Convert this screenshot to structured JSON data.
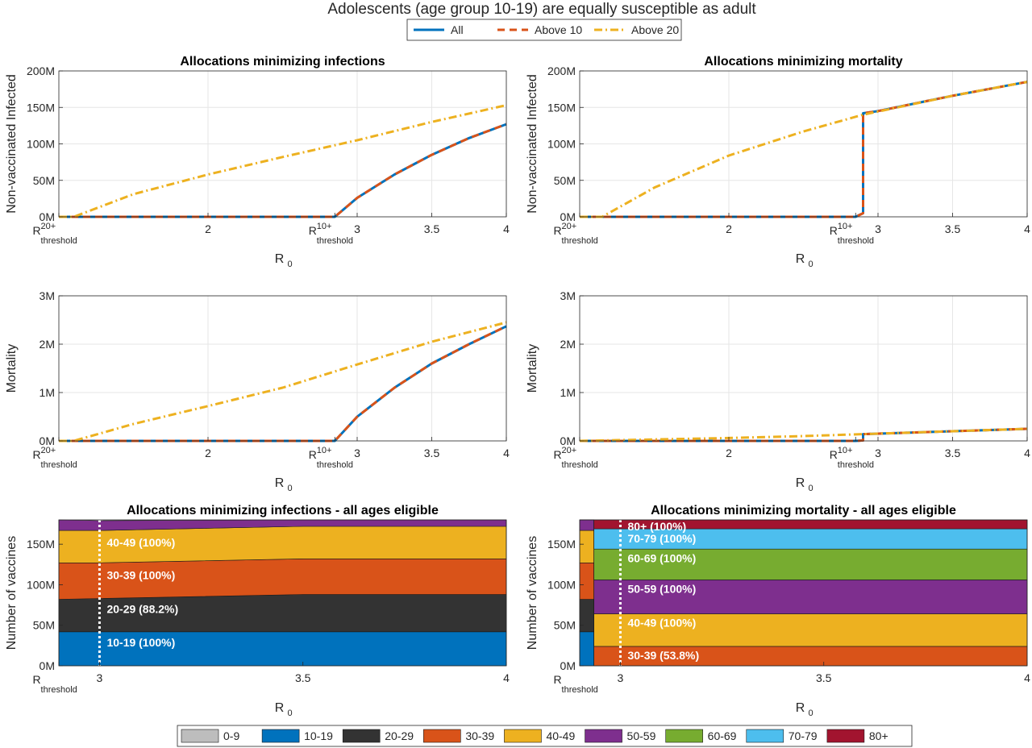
{
  "figure": {
    "suptitle": "Adolescents (age group 10-19) are equally susceptible as adult",
    "series_legend": [
      {
        "label": "All",
        "color": "#0072BD",
        "dash": "solid"
      },
      {
        "label": "Above 10",
        "color": "#D95319",
        "dash": "dashed"
      },
      {
        "label": "Above 20",
        "color": "#EDB120",
        "dash": "dashdot"
      }
    ],
    "age_legend": [
      {
        "label": "0-9",
        "color": "#BDBDBD"
      },
      {
        "label": "10-19",
        "color": "#0072BD"
      },
      {
        "label": "20-29",
        "color": "#333333"
      },
      {
        "label": "30-39",
        "color": "#D95319"
      },
      {
        "label": "40-49",
        "color": "#EDB120"
      },
      {
        "label": "50-59",
        "color": "#7E2F8E"
      },
      {
        "label": "60-69",
        "color": "#77AC30"
      },
      {
        "label": "70-79",
        "color": "#4DBEEE"
      },
      {
        "label": "80+",
        "color": "#A2142F"
      }
    ]
  },
  "chart_data": [
    {
      "id": "infected_min_infections",
      "type": "line",
      "title": "Allocations minimizing infections",
      "xlabel": "R",
      "xlabel_sub": "0",
      "ylabel": "Non-vaccinated Infected",
      "xlim": [
        1.0,
        4.0
      ],
      "ylim": [
        0,
        200
      ],
      "x_ticks": [
        {
          "value": 2,
          "label": "2"
        },
        {
          "value": 3,
          "label": "3"
        },
        {
          "value": 3.5,
          "label": "3.5"
        },
        {
          "value": 4,
          "label": "4"
        }
      ],
      "y_ticks": [
        {
          "value": 0,
          "label": "0M"
        },
        {
          "value": 50,
          "label": "50M"
        },
        {
          "value": 100,
          "label": "100M"
        },
        {
          "value": 150,
          "label": "150M"
        },
        {
          "value": 200,
          "label": "200M"
        }
      ],
      "thresholds": [
        {
          "value": 1.0,
          "base": "R",
          "sup": "20+",
          "sub": "threshold"
        },
        {
          "value": 2.85,
          "base": "R",
          "sup": "10+",
          "sub": "threshold"
        }
      ],
      "grid": true,
      "series": [
        {
          "name": "All",
          "x": [
            1.0,
            2.85,
            3.0,
            3.25,
            3.5,
            3.75,
            4.0
          ],
          "y": [
            0,
            0,
            26,
            58,
            85,
            108,
            127
          ]
        },
        {
          "name": "Above 10",
          "x": [
            1.0,
            2.85,
            3.0,
            3.25,
            3.5,
            3.75,
            4.0
          ],
          "y": [
            0,
            0,
            26,
            58,
            85,
            108,
            127
          ]
        },
        {
          "name": "Above 20",
          "x": [
            1.0,
            1.1,
            1.5,
            2.0,
            2.5,
            3.0,
            3.5,
            4.0
          ],
          "y": [
            0,
            0,
            31,
            58,
            82,
            105,
            130,
            153
          ]
        }
      ]
    },
    {
      "id": "infected_min_mortality",
      "type": "line",
      "title": "Allocations minimizing mortality",
      "xlabel": "R",
      "xlabel_sub": "0",
      "ylabel": "Non-vaccinated Infected",
      "xlim": [
        1.0,
        4.0
      ],
      "ylim": [
        0,
        200
      ],
      "x_ticks": [
        {
          "value": 2,
          "label": "2"
        },
        {
          "value": 3,
          "label": "3"
        },
        {
          "value": 3.5,
          "label": "3.5"
        },
        {
          "value": 4,
          "label": "4"
        }
      ],
      "y_ticks": [
        {
          "value": 0,
          "label": "0M"
        },
        {
          "value": 50,
          "label": "50M"
        },
        {
          "value": 100,
          "label": "100M"
        },
        {
          "value": 150,
          "label": "150M"
        },
        {
          "value": 200,
          "label": "200M"
        }
      ],
      "thresholds": [
        {
          "value": 1.0,
          "base": "R",
          "sup": "20+",
          "sub": "threshold"
        },
        {
          "value": 2.85,
          "base": "R",
          "sup": "10+",
          "sub": "threshold"
        }
      ],
      "grid": true,
      "series": [
        {
          "name": "All",
          "x": [
            1.0,
            2.85,
            2.9,
            2.9,
            3.0,
            3.5,
            4.0
          ],
          "y": [
            0,
            0,
            5,
            142,
            145,
            166,
            185
          ]
        },
        {
          "name": "Above 10",
          "x": [
            1.0,
            2.85,
            2.9,
            2.9,
            3.0,
            3.5,
            4.0
          ],
          "y": [
            0,
            0,
            5,
            142,
            145,
            166,
            185
          ]
        },
        {
          "name": "Above 20",
          "x": [
            1.0,
            1.15,
            1.5,
            2.0,
            2.5,
            2.9,
            3.5,
            4.0
          ],
          "y": [
            0,
            0,
            40,
            84,
            117,
            140,
            166,
            185
          ]
        }
      ]
    },
    {
      "id": "mortality_min_infections",
      "type": "line",
      "title": "",
      "xlabel": "R",
      "xlabel_sub": "0",
      "ylabel": "Mortality",
      "xlim": [
        1.0,
        4.0
      ],
      "ylim": [
        0,
        3
      ],
      "x_ticks": [
        {
          "value": 2,
          "label": "2"
        },
        {
          "value": 3,
          "label": "3"
        },
        {
          "value": 3.5,
          "label": "3.5"
        },
        {
          "value": 4,
          "label": "4"
        }
      ],
      "y_ticks": [
        {
          "value": 0,
          "label": "0M"
        },
        {
          "value": 1,
          "label": "1M"
        },
        {
          "value": 2,
          "label": "2M"
        },
        {
          "value": 3,
          "label": "3M"
        }
      ],
      "thresholds": [
        {
          "value": 1.0,
          "base": "R",
          "sup": "20+",
          "sub": "threshold"
        },
        {
          "value": 2.85,
          "base": "R",
          "sup": "10+",
          "sub": "threshold"
        }
      ],
      "grid": true,
      "series": [
        {
          "name": "All",
          "x": [
            1.0,
            2.85,
            3.0,
            3.25,
            3.5,
            3.75,
            4.0
          ],
          "y": [
            0,
            0,
            0.5,
            1.1,
            1.6,
            2.0,
            2.37
          ]
        },
        {
          "name": "Above 10",
          "x": [
            1.0,
            2.85,
            3.0,
            3.25,
            3.5,
            3.75,
            4.0
          ],
          "y": [
            0,
            0,
            0.5,
            1.1,
            1.6,
            2.0,
            2.37
          ]
        },
        {
          "name": "Above 20",
          "x": [
            1.0,
            1.1,
            1.5,
            2.0,
            2.5,
            3.0,
            3.5,
            4.0
          ],
          "y": [
            0,
            0,
            0.35,
            0.72,
            1.1,
            1.58,
            2.05,
            2.45
          ]
        }
      ]
    },
    {
      "id": "mortality_min_mortality",
      "type": "line",
      "title": "",
      "xlabel": "R",
      "xlabel_sub": "0",
      "ylabel": "Mortality",
      "xlim": [
        1.0,
        4.0
      ],
      "ylim": [
        0,
        3
      ],
      "x_ticks": [
        {
          "value": 2,
          "label": "2"
        },
        {
          "value": 3,
          "label": "3"
        },
        {
          "value": 3.5,
          "label": "3.5"
        },
        {
          "value": 4,
          "label": "4"
        }
      ],
      "y_ticks": [
        {
          "value": 0,
          "label": "0M"
        },
        {
          "value": 1,
          "label": "1M"
        },
        {
          "value": 2,
          "label": "2M"
        },
        {
          "value": 3,
          "label": "3M"
        }
      ],
      "thresholds": [
        {
          "value": 1.0,
          "base": "R",
          "sup": "20+",
          "sub": "threshold"
        },
        {
          "value": 2.85,
          "base": "R",
          "sup": "10+",
          "sub": "threshold"
        }
      ],
      "grid": true,
      "series": [
        {
          "name": "All",
          "x": [
            1.0,
            2.85,
            2.9,
            2.9,
            3.5,
            4.0
          ],
          "y": [
            0,
            0,
            0.01,
            0.14,
            0.2,
            0.25
          ]
        },
        {
          "name": "Above 10",
          "x": [
            1.0,
            2.85,
            2.9,
            2.9,
            3.5,
            4.0
          ],
          "y": [
            0,
            0,
            0.01,
            0.14,
            0.2,
            0.25
          ]
        },
        {
          "name": "Above 20",
          "x": [
            1.0,
            1.5,
            2.0,
            2.5,
            2.9,
            3.5,
            4.0
          ],
          "y": [
            0,
            0.03,
            0.06,
            0.1,
            0.14,
            0.2,
            0.25
          ]
        }
      ]
    },
    {
      "id": "vaccines_min_infections",
      "type": "area",
      "title": "Allocations minimizing infections - all ages eligible",
      "xlabel": "R",
      "xlabel_sub": "0",
      "ylabel": "Number of vaccines",
      "xlim": [
        2.9,
        4.0
      ],
      "ylim": [
        0,
        180
      ],
      "x_ticks": [
        {
          "value": 3,
          "label": "3"
        },
        {
          "value": 3.5,
          "label": "3.5"
        },
        {
          "value": 4,
          "label": "4"
        }
      ],
      "y_ticks": [
        {
          "value": 0,
          "label": "0M"
        },
        {
          "value": 50,
          "label": "50M"
        },
        {
          "value": 100,
          "label": "100M"
        },
        {
          "value": 150,
          "label": "150M"
        }
      ],
      "thresholds": [
        {
          "value": 2.9,
          "base": "R",
          "sup": "",
          "sub": "threshold"
        }
      ],
      "marker_line": 3.0,
      "x": [
        2.9,
        3.0,
        3.5,
        4.0
      ],
      "layers": [
        {
          "name": "10-19",
          "color": "#0072BD",
          "values": [
            42,
            42,
            42,
            42
          ]
        },
        {
          "name": "20-29",
          "color": "#333333",
          "values": [
            40,
            41,
            46,
            46
          ]
        },
        {
          "name": "30-39",
          "color": "#D95319",
          "values": [
            45,
            44,
            44,
            44
          ]
        },
        {
          "name": "40-49",
          "color": "#EDB120",
          "values": [
            40,
            40,
            40,
            40
          ]
        },
        {
          "name": "50-59",
          "color": "#7E2F8E",
          "values": [
            13,
            12,
            8,
            8
          ]
        }
      ],
      "annotations": [
        {
          "text": "40-49 (100%)",
          "y": 152
        },
        {
          "text": "30-39 (100%)",
          "y": 112
        },
        {
          "text": "20-29 (88.2%)",
          "y": 70
        },
        {
          "text": "10-19 (100%)",
          "y": 29
        }
      ]
    },
    {
      "id": "vaccines_min_mortality",
      "type": "area",
      "title": "Allocations minimizing mortality - all ages eligible",
      "xlabel": "R",
      "xlabel_sub": "0",
      "ylabel": "Number of vaccines",
      "xlim": [
        2.9,
        4.0
      ],
      "ylim": [
        0,
        180
      ],
      "x_ticks": [
        {
          "value": 3,
          "label": "3"
        },
        {
          "value": 3.5,
          "label": "3.5"
        },
        {
          "value": 4,
          "label": "4"
        }
      ],
      "y_ticks": [
        {
          "value": 0,
          "label": "0M"
        },
        {
          "value": 50,
          "label": "50M"
        },
        {
          "value": 100,
          "label": "100M"
        },
        {
          "value": 150,
          "label": "150M"
        }
      ],
      "thresholds": [
        {
          "value": 2.9,
          "base": "R",
          "sup": "",
          "sub": "threshold"
        }
      ],
      "marker_line": 3.0,
      "x": [
        2.9,
        2.935,
        2.935,
        4.0
      ],
      "layers": [
        {
          "name": "10-19",
          "color": "#0072BD",
          "values": [
            42,
            42,
            0,
            0
          ]
        },
        {
          "name": "20-29",
          "color": "#333333",
          "values": [
            40,
            40,
            0,
            0
          ]
        },
        {
          "name": "30-39",
          "color": "#D95319",
          "values": [
            45,
            45,
            24,
            24
          ]
        },
        {
          "name": "40-49",
          "color": "#EDB120",
          "values": [
            40,
            40,
            40,
            40
          ]
        },
        {
          "name": "50-59",
          "color": "#7E2F8E",
          "values": [
            13,
            13,
            42,
            42
          ]
        },
        {
          "name": "60-69",
          "color": "#77AC30",
          "values": [
            0,
            0,
            38,
            38
          ]
        },
        {
          "name": "70-79",
          "color": "#4DBEEE",
          "values": [
            0,
            0,
            25,
            25
          ]
        },
        {
          "name": "80+",
          "color": "#A2142F",
          "values": [
            0,
            0,
            13,
            13
          ]
        }
      ],
      "annotations": [
        {
          "text": "80+ (100%)",
          "y": 172
        },
        {
          "text": "70-79 (100%)",
          "y": 157
        },
        {
          "text": "60-69 (100%)",
          "y": 133
        },
        {
          "text": "50-59 (100%)",
          "y": 95
        },
        {
          "text": "40-49 (100%)",
          "y": 53
        },
        {
          "text": "30-39 (53.8%)",
          "y": 13
        }
      ]
    }
  ]
}
